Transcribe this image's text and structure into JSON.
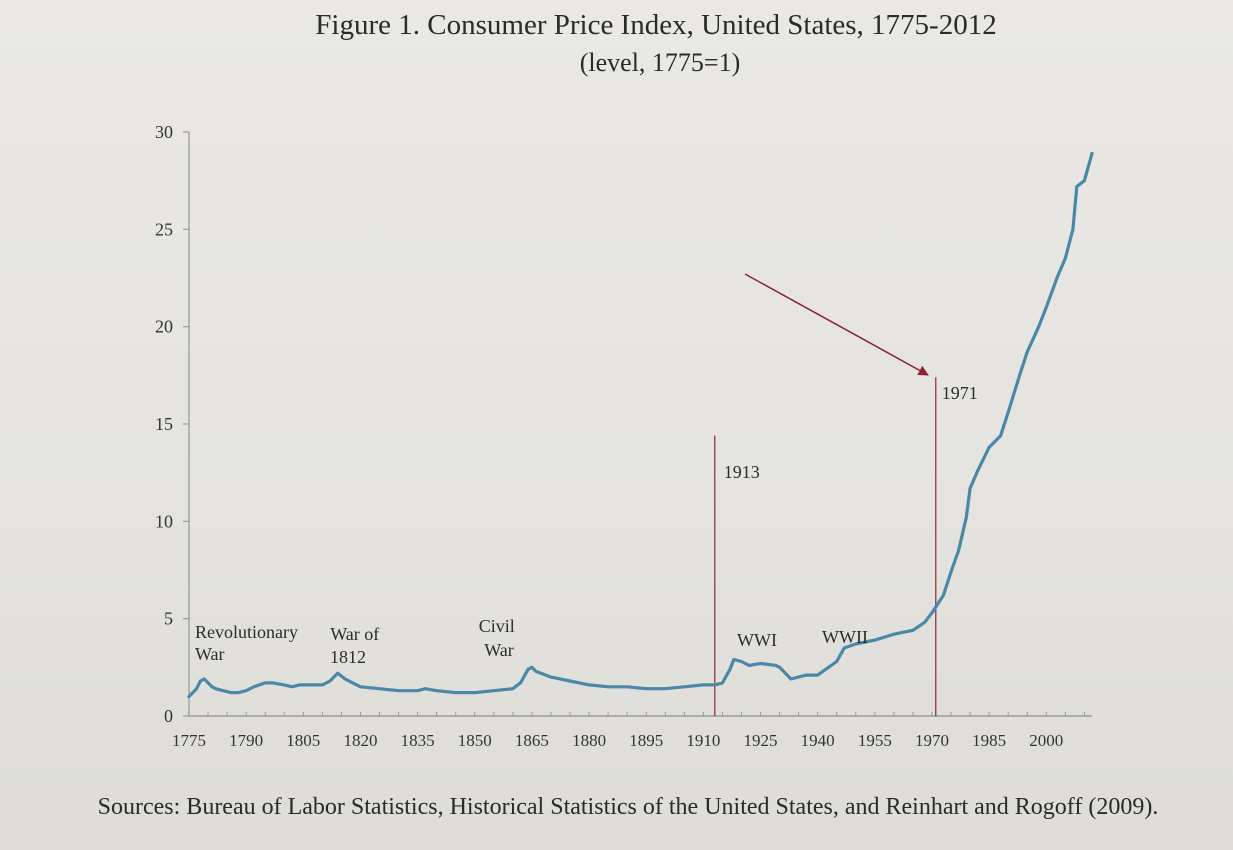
{
  "chart_data": {
    "type": "line",
    "title": "Figure 1. Consumer Price Index, United States, 1775-2012",
    "subtitle": "(level, 1775=1)",
    "xlabel": "",
    "ylabel": "",
    "xlim": [
      1775,
      2012
    ],
    "ylim": [
      0,
      30
    ],
    "yticks": [
      0,
      5,
      10,
      15,
      20,
      25,
      30
    ],
    "xticks": [
      1775,
      1790,
      1805,
      1820,
      1835,
      1850,
      1865,
      1880,
      1895,
      1910,
      1925,
      1940,
      1955,
      1970,
      1985,
      2000
    ],
    "grid": false,
    "legend": "none",
    "series_color": "#4a88a8",
    "marker_color": "#8a2a30",
    "arrow_color": "#8a2233",
    "series": [
      {
        "x": [
          1775,
          1777,
          1778,
          1779,
          1780,
          1781,
          1782,
          1784,
          1786,
          1788,
          1790,
          1792,
          1795,
          1797,
          1800,
          1802,
          1804,
          1806,
          1808,
          1810,
          1812,
          1814,
          1816,
          1818,
          1820,
          1825,
          1830,
          1835,
          1837,
          1840,
          1845,
          1850,
          1855,
          1860,
          1862,
          1864,
          1865,
          1866,
          1870,
          1875,
          1880,
          1885,
          1890,
          1895,
          1900,
          1905,
          1910,
          1913,
          1915,
          1917,
          1918,
          1920,
          1922,
          1925,
          1929,
          1930,
          1933,
          1937,
          1940,
          1945,
          1947,
          1950,
          1955,
          1960,
          1965,
          1968,
          1970,
          1971,
          1973,
          1975,
          1977,
          1979,
          1980,
          1982,
          1985,
          1988,
          1990,
          1993,
          1995,
          1998,
          2000,
          2003,
          2005,
          2007,
          2008,
          2010,
          2012
        ],
        "values": [
          1.0,
          1.4,
          1.8,
          1.9,
          1.7,
          1.5,
          1.4,
          1.3,
          1.2,
          1.2,
          1.3,
          1.5,
          1.7,
          1.7,
          1.6,
          1.5,
          1.6,
          1.6,
          1.6,
          1.6,
          1.8,
          2.2,
          1.9,
          1.7,
          1.5,
          1.4,
          1.3,
          1.3,
          1.4,
          1.3,
          1.2,
          1.2,
          1.3,
          1.4,
          1.7,
          2.4,
          2.5,
          2.3,
          2.0,
          1.8,
          1.6,
          1.5,
          1.5,
          1.4,
          1.4,
          1.5,
          1.6,
          1.6,
          1.7,
          2.4,
          2.9,
          2.8,
          2.6,
          2.7,
          2.6,
          2.5,
          1.9,
          2.1,
          2.1,
          2.8,
          3.5,
          3.7,
          3.9,
          4.2,
          4.4,
          4.8,
          5.3,
          5.6,
          6.2,
          7.4,
          8.5,
          10.2,
          11.7,
          12.6,
          13.8,
          14.4,
          15.6,
          17.5,
          18.7,
          20.0,
          21.0,
          22.6,
          23.5,
          25.0,
          27.2,
          27.5,
          28.9
        ]
      }
    ],
    "markers": [
      {
        "x": 1913,
        "label": "1913",
        "top": 14.4
      },
      {
        "x": 1971,
        "label": "1971",
        "top": 17.4
      }
    ],
    "annotations": [
      {
        "lines": [
          "Revolutionary",
          "War"
        ]
      },
      {
        "lines": [
          "War of",
          "1812"
        ]
      },
      {
        "lines": [
          "Civil",
          "War"
        ]
      },
      {
        "lines": [
          "WWI"
        ]
      },
      {
        "lines": [
          "WWII"
        ]
      }
    ],
    "source": "Sources: Bureau of Labor Statistics, Historical Statistics of the United States, and Reinhart and Rogoff (2009)."
  }
}
